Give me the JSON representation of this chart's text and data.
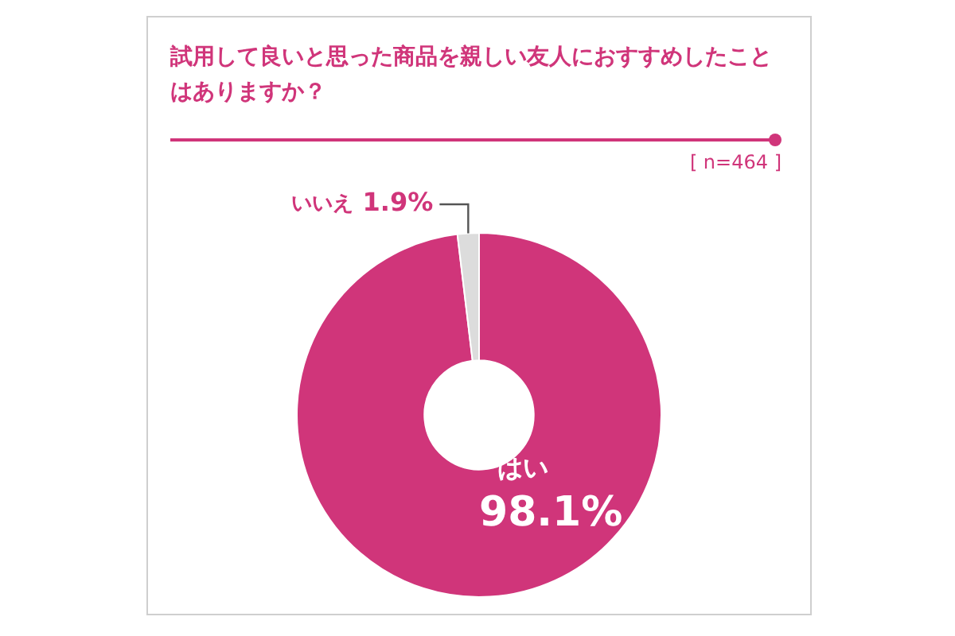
{
  "chart_data": {
    "type": "donut",
    "title": "試用して良いと思った商品を親しい友人におすすめしたことはありますか？",
    "categories": [
      "はい",
      "いいえ"
    ],
    "values": [
      98.1,
      1.9
    ],
    "colors": [
      "#d0357a",
      "#dcdcdc"
    ],
    "value_labels": [
      "98.1%",
      "1.9%"
    ],
    "annotations": [
      "[ n=464 ]"
    ]
  }
}
